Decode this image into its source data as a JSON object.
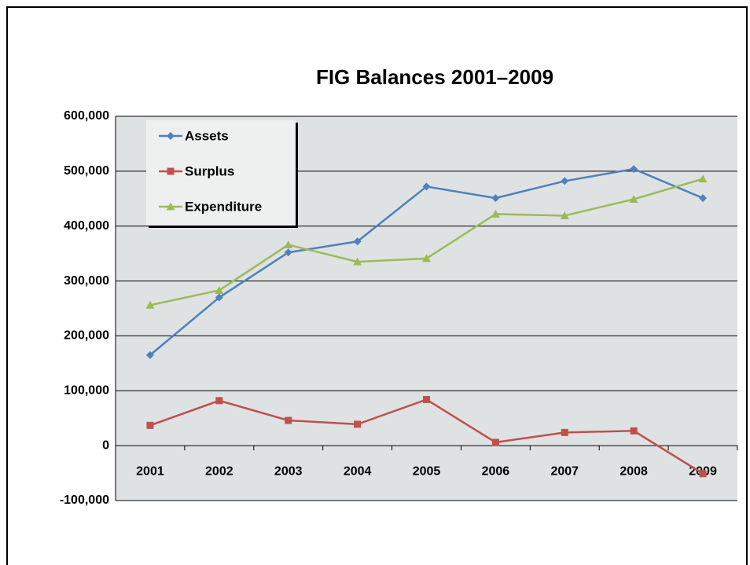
{
  "chart_data": {
    "type": "line",
    "title": "FIG Balances 2001–2009",
    "categories": [
      "2001",
      "2002",
      "2003",
      "2004",
      "2005",
      "2006",
      "2007",
      "2008",
      "2009"
    ],
    "series": [
      {
        "name": "Assets",
        "color": "#4f81bd",
        "marker": "diamond",
        "values": [
          165000,
          270000,
          352000,
          372000,
          472000,
          451000,
          482000,
          504000,
          451000
        ]
      },
      {
        "name": "Surplus",
        "color": "#c0504d",
        "marker": "square",
        "values": [
          37000,
          82000,
          46000,
          39000,
          84000,
          6000,
          24000,
          27000,
          -51000
        ]
      },
      {
        "name": "Expenditure",
        "color": "#9bbb59",
        "marker": "triangle",
        "values": [
          256000,
          283000,
          366000,
          335000,
          341000,
          422000,
          419000,
          449000,
          486000
        ]
      }
    ],
    "ylim": [
      -100000,
      600000
    ],
    "yticks": [
      {
        "value": -100000,
        "label": "-100,000"
      },
      0,
      {
        "value": 100000,
        "label": "100,000"
      },
      {
        "value": 200000,
        "label": "200,000"
      },
      {
        "value": 300000,
        "label": "300,000"
      },
      {
        "value": 400000,
        "label": "400,000"
      },
      {
        "value": 500000,
        "label": "500,000"
      },
      {
        "value": 600000,
        "label": "600,000"
      }
    ],
    "grid": true,
    "legend": "upper left"
  }
}
